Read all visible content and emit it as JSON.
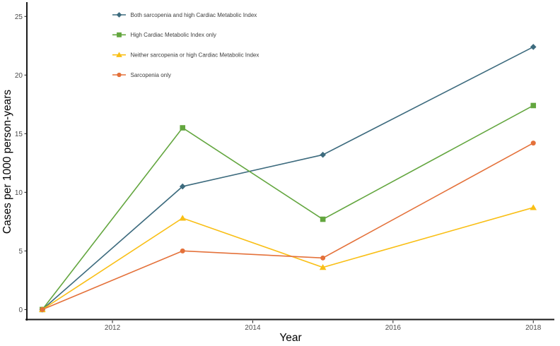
{
  "chart_data": {
    "type": "line",
    "title": "",
    "xlabel": "Year",
    "ylabel": "Cases per 1000 person-years",
    "x": [
      2011,
      2013,
      2015,
      2018
    ],
    "series": [
      {
        "name": "Both sarcopenia and high Cardiac Metabolic Index",
        "marker": "diamond",
        "color": "#3d6b7e",
        "values": [
          0,
          10.5,
          13.2,
          22.4
        ]
      },
      {
        "name": "High Cardiac Metabolic Index only",
        "marker": "square",
        "color": "#63a63f",
        "values": [
          0,
          15.5,
          7.7,
          17.4
        ]
      },
      {
        "name": "Neither sarcopenia or high Cardiac Metabolic Index",
        "marker": "triangle",
        "color": "#f9bf16",
        "values": [
          0,
          7.8,
          3.6,
          8.7
        ]
      },
      {
        "name": "Sarcopenia only",
        "marker": "circle",
        "color": "#e4713a",
        "values": [
          0,
          5.0,
          4.4,
          14.2
        ]
      }
    ],
    "xticks": [
      2012,
      2014,
      2016,
      2018
    ],
    "yticks": [
      0,
      5,
      10,
      15,
      20,
      25
    ],
    "xlim": [
      2010.78,
      2018.3
    ],
    "ylim": [
      -0.85,
      26.1
    ],
    "grid": false,
    "legend_position": "top-left",
    "axis_color": "#1a1a1a",
    "tick_label_color": "#4d4d4d",
    "legend_text_color": "#3d3d3d",
    "background_color": "#ffffff"
  }
}
